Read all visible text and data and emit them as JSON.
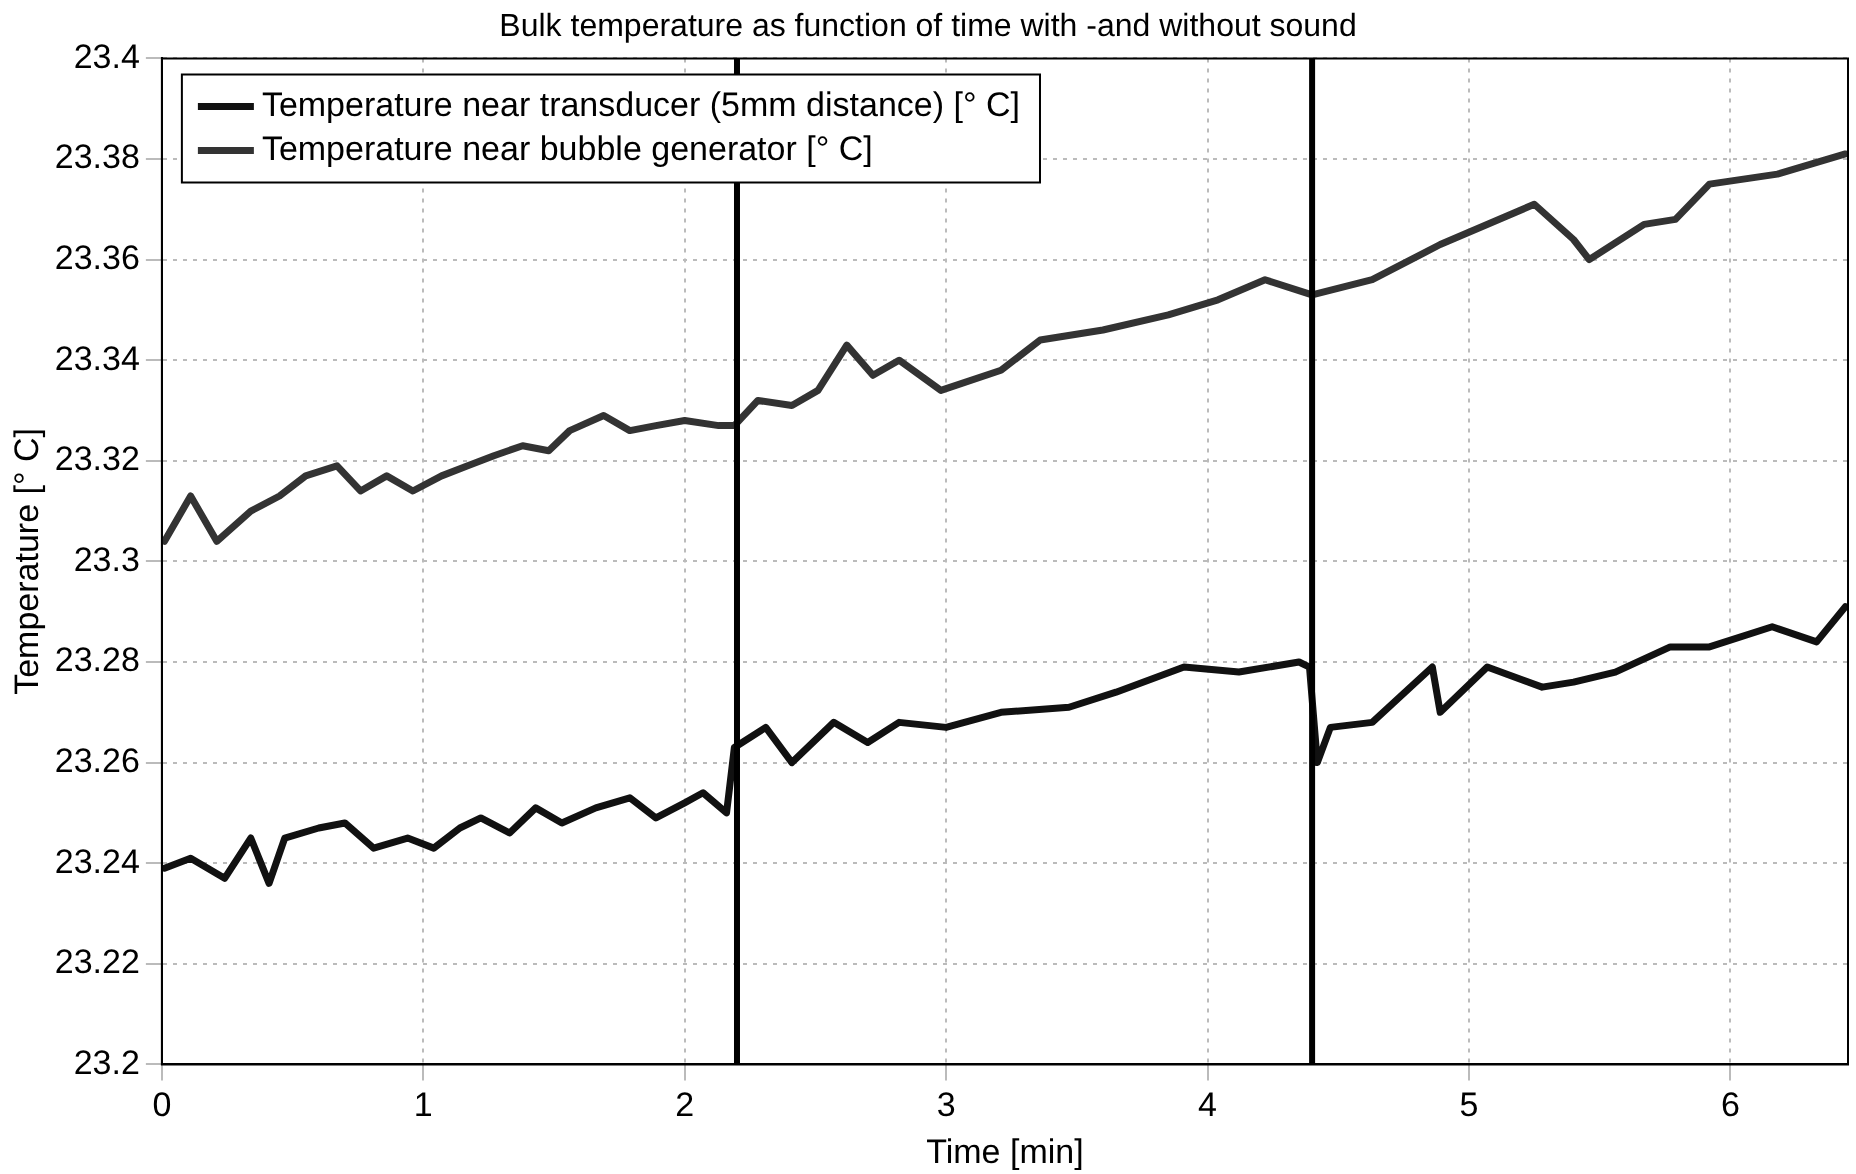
{
  "chart_data": {
    "type": "line",
    "title": "Bulk temperature as function of time with -and without sound",
    "xlabel": "Time [min]",
    "ylabel": "Temperature [° C]",
    "xlim": [
      0,
      6.45
    ],
    "xticks": [
      0,
      1,
      2,
      3,
      4,
      5,
      6
    ],
    "ylim": [
      23.2,
      23.4
    ],
    "yticks": [
      23.2,
      23.22,
      23.24,
      23.26,
      23.28,
      23.3,
      23.32,
      23.34,
      23.36,
      23.38,
      23.4
    ],
    "grid": true,
    "legend": "top left",
    "marker": "none",
    "line_style": "solid",
    "ref_lines": [
      {
        "axis": "x",
        "value": 2.2,
        "color": "#000000"
      },
      {
        "axis": "x",
        "value": 4.4,
        "color": "#000000"
      }
    ],
    "series": [
      {
        "name": "Temperature near transducer (5mm distance) [° C]",
        "color": "#111111",
        "x": [
          0.01,
          0.11,
          0.24,
          0.34,
          0.41,
          0.47,
          0.6,
          0.7,
          0.81,
          0.94,
          1.04,
          1.14,
          1.22,
          1.33,
          1.43,
          1.53,
          1.66,
          1.79,
          1.89,
          2.0,
          2.07,
          2.16,
          2.19,
          2.31,
          2.41,
          2.57,
          2.7,
          2.82,
          3.0,
          3.21,
          3.47,
          3.65,
          3.91,
          4.12,
          4.35,
          4.39,
          4.42,
          4.47,
          4.63,
          4.86,
          4.89,
          5.07,
          5.28,
          5.4,
          5.56,
          5.77,
          5.92,
          6.16,
          6.33,
          6.44
        ],
        "values": [
          23.239,
          23.241,
          23.237,
          23.245,
          23.236,
          23.245,
          23.247,
          23.248,
          23.243,
          23.245,
          23.243,
          23.247,
          23.249,
          23.246,
          23.251,
          23.248,
          23.251,
          23.253,
          23.249,
          23.252,
          23.254,
          23.25,
          23.263,
          23.267,
          23.26,
          23.268,
          23.264,
          23.268,
          23.267,
          23.27,
          23.271,
          23.274,
          23.279,
          23.278,
          23.28,
          23.279,
          23.26,
          23.267,
          23.268,
          23.279,
          23.27,
          23.279,
          23.275,
          23.276,
          23.278,
          23.283,
          23.283,
          23.287,
          23.284,
          23.291
        ]
      },
      {
        "name": "Temperature near bubble generator [° C]",
        "color": "#333333",
        "x": [
          0.01,
          0.11,
          0.21,
          0.34,
          0.45,
          0.55,
          0.67,
          0.76,
          0.86,
          0.96,
          1.07,
          1.17,
          1.27,
          1.38,
          1.48,
          1.56,
          1.69,
          1.79,
          1.89,
          2.0,
          2.13,
          2.19,
          2.28,
          2.41,
          2.51,
          2.62,
          2.72,
          2.82,
          2.98,
          3.21,
          3.36,
          3.6,
          3.85,
          4.04,
          4.22,
          4.4,
          4.63,
          4.89,
          5.25,
          5.4,
          5.46,
          5.67,
          5.79,
          5.92,
          6.18,
          6.44
        ],
        "values": [
          23.304,
          23.313,
          23.304,
          23.31,
          23.313,
          23.317,
          23.319,
          23.314,
          23.317,
          23.314,
          23.317,
          23.319,
          23.321,
          23.323,
          23.322,
          23.326,
          23.329,
          23.326,
          23.327,
          23.328,
          23.327,
          23.327,
          23.332,
          23.331,
          23.334,
          23.343,
          23.337,
          23.34,
          23.334,
          23.338,
          23.344,
          23.346,
          23.349,
          23.352,
          23.356,
          23.353,
          23.356,
          23.363,
          23.371,
          23.364,
          23.36,
          23.367,
          23.368,
          23.375,
          23.377,
          23.381
        ]
      }
    ]
  }
}
